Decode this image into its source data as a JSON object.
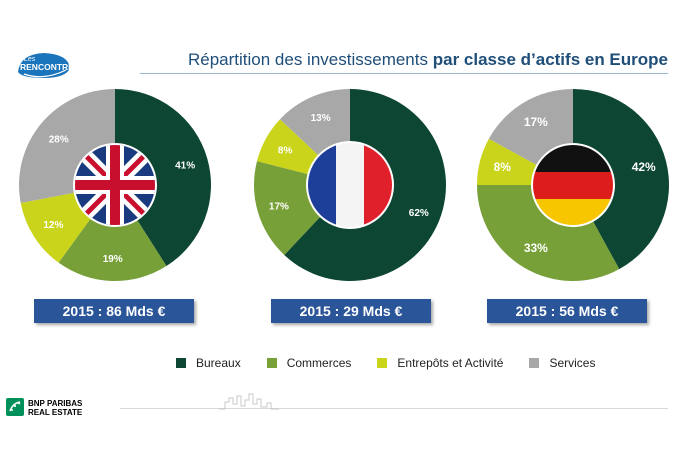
{
  "title": {
    "normal": "Répartition des investissements",
    "bold": "par classe d’actifs en Europe"
  },
  "logo": {
    "line1": "Les",
    "line2": "RENCONTRES"
  },
  "footer": {
    "brand_line1": "BNP PARIBAS",
    "brand_line2": "REAL ESTATE"
  },
  "colors": {
    "Bureaux": "#0d4633",
    "Commerces": "#78a038",
    "Entrepôts et Activité": "#c9d41a",
    "Services": "#a8a8a8",
    "caption_bg": "#2a5599"
  },
  "legend": [
    "Bureaux",
    "Commerces",
    "Entrepôts et Activité",
    "Services"
  ],
  "chart_data": [
    {
      "type": "pie",
      "country_flag": "uk-flag",
      "caption": "2015 : 86 Mds €",
      "categories": [
        "Bureaux",
        "Commerces",
        "Entrepôts et Activité",
        "Services"
      ],
      "values": [
        41,
        19,
        12,
        28
      ],
      "labels": [
        "41%",
        "19%",
        "12%",
        "28%"
      ]
    },
    {
      "type": "pie",
      "country_flag": "france-flag",
      "caption": "2015 : 29 Mds €",
      "categories": [
        "Bureaux",
        "Commerces",
        "Entrepôts et Activité",
        "Services"
      ],
      "values": [
        62,
        17,
        8,
        13
      ],
      "labels": [
        "62%",
        "17%",
        "8%",
        "13%"
      ]
    },
    {
      "type": "pie",
      "country_flag": "germany-flag",
      "caption": "2015 : 56 Mds €",
      "categories": [
        "Bureaux",
        "Commerces",
        "Entrepôts et Activité",
        "Services"
      ],
      "values": [
        42,
        33,
        8,
        17
      ],
      "labels": [
        "42%",
        "33%",
        "8%",
        "17%"
      ]
    }
  ]
}
